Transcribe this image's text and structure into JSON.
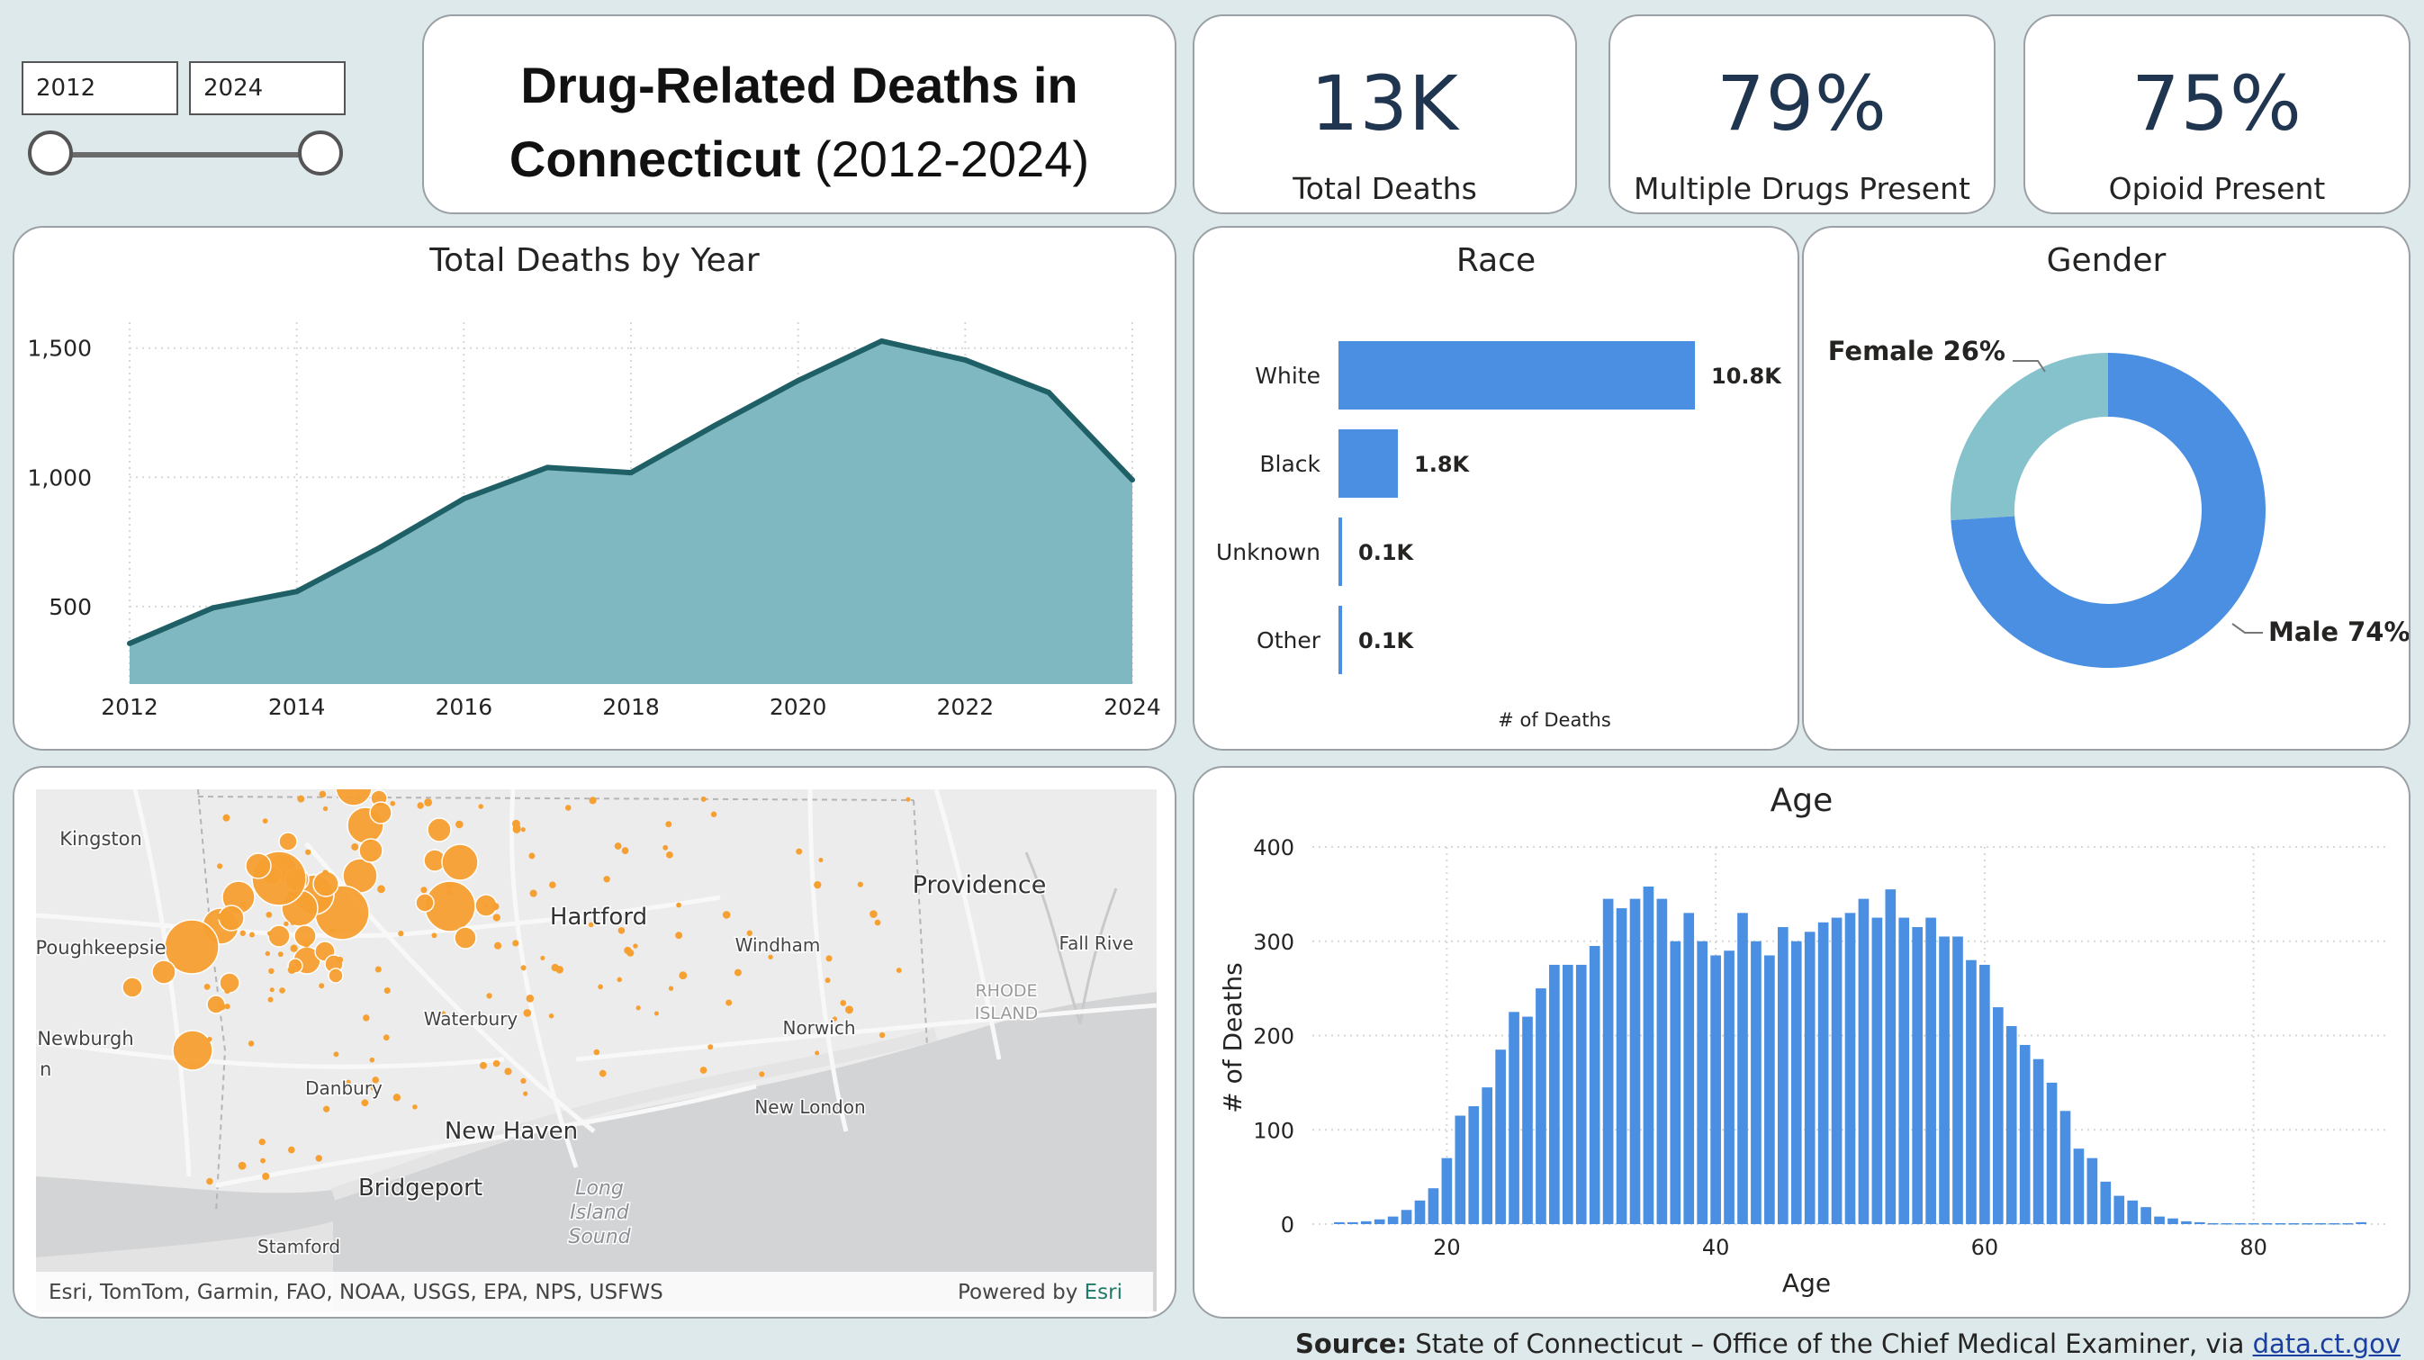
{
  "slicer": {
    "start": "2012",
    "end": "2024",
    "range": [
      2012,
      2024
    ],
    "selected": [
      2012,
      2024
    ]
  },
  "title": {
    "line1": "Drug-Related Deaths in",
    "line2_bold": "Connecticut",
    "line2_light": "(2012-2024)"
  },
  "kpis": [
    {
      "value": "13K",
      "label": "Total Deaths"
    },
    {
      "value": "79%",
      "label": "Multiple Drugs Present"
    },
    {
      "value": "75%",
      "label": "Opioid Present"
    }
  ],
  "colors": {
    "background": "#dde9ea",
    "area_fill": "#7fb8c1",
    "area_line": "#1f5f66",
    "bar": "#4a8fe2",
    "donut_female": "#86c2cb",
    "donut_male": "#4a8fe2",
    "map_dot": "#f7a032",
    "kpi_text": "#1f3550"
  },
  "map": {
    "labels": {
      "kingston": "Kingston",
      "poughkeepsie": "Poughkeepsie",
      "newburgh": "Newburgh",
      "providence": "Providence",
      "fall_river": "Fall Rive",
      "rhode1": "RHODE",
      "rhode2": "ISLAND",
      "hartford": "Hartford",
      "waterbury": "Waterbury",
      "windham": "Windham",
      "norwich": "Norwich",
      "danbury": "Danbury",
      "new_haven": "New Haven",
      "new_london": "New London",
      "bridgeport": "Bridgeport",
      "stamford": "Stamford",
      "sound1": "Long",
      "sound2": "Island",
      "sound3": "Sound",
      "edge": "n"
    },
    "attribution": "Esri, TomTom, Garmin, FAO, NOAA, USGS, EPA, NPS, USFWS",
    "powered_prefix": "Powered by ",
    "powered_brand": "Esri"
  },
  "source": {
    "label": "Source:",
    "text": " State of Connecticut – Office of the Chief Medical Examiner, via ",
    "link": "data.ct.gov"
  },
  "chart_data": [
    {
      "type": "area",
      "title": "Total Deaths by Year",
      "x": [
        2012,
        2013,
        2014,
        2015,
        2016,
        2017,
        2018,
        2019,
        2020,
        2021,
        2022,
        2023,
        2024
      ],
      "values": [
        357,
        495,
        558,
        729,
        917,
        1038,
        1018,
        1200,
        1374,
        1527,
        1454,
        1328,
        990
      ],
      "xticks": [
        "2012",
        "2014",
        "2016",
        "2018",
        "2020",
        "2022",
        "2024"
      ],
      "yticks": [
        "500",
        "1,000",
        "1,500"
      ],
      "ylim": [
        200,
        1600
      ],
      "grid": true
    },
    {
      "type": "bar",
      "orientation": "horizontal",
      "title": "Race",
      "categories": [
        "White",
        "Black",
        "Unknown",
        "Other"
      ],
      "values": [
        10.8,
        1.8,
        0.1,
        0.1
      ],
      "value_labels": [
        "10.8K",
        "1.8K",
        "0.1K",
        "0.1K"
      ],
      "xlabel": "# of Deaths",
      "units": "K"
    },
    {
      "type": "pie",
      "title": "Gender",
      "categories": [
        "Female",
        "Male"
      ],
      "values": [
        26,
        74
      ],
      "labels": [
        "Female 26%",
        "Male 74%"
      ],
      "donut": true
    },
    {
      "type": "bar",
      "title": "Age",
      "xlabel": "Age",
      "ylabel": "# of Deaths",
      "xticks": [
        "20",
        "40",
        "60",
        "80"
      ],
      "yticks": [
        "0",
        "100",
        "200",
        "300",
        "400"
      ],
      "ylim": [
        0,
        400
      ],
      "x": [
        12,
        13,
        14,
        15,
        16,
        17,
        18,
        19,
        20,
        21,
        22,
        23,
        24,
        25,
        26,
        27,
        28,
        29,
        30,
        31,
        32,
        33,
        34,
        35,
        36,
        37,
        38,
        39,
        40,
        41,
        42,
        43,
        44,
        45,
        46,
        47,
        48,
        49,
        50,
        51,
        52,
        53,
        54,
        55,
        56,
        57,
        58,
        59,
        60,
        61,
        62,
        63,
        64,
        65,
        66,
        67,
        68,
        69,
        70,
        71,
        72,
        73,
        74,
        75,
        76,
        77,
        78,
        79,
        80,
        81,
        82,
        83,
        84,
        85,
        86,
        87,
        88
      ],
      "values": [
        2,
        2,
        3,
        5,
        8,
        15,
        25,
        38,
        70,
        115,
        125,
        145,
        185,
        225,
        220,
        250,
        275,
        275,
        275,
        295,
        345,
        335,
        345,
        358,
        345,
        300,
        330,
        300,
        285,
        290,
        330,
        300,
        285,
        315,
        300,
        310,
        320,
        325,
        330,
        345,
        325,
        355,
        325,
        315,
        325,
        305,
        305,
        280,
        275,
        230,
        210,
        190,
        175,
        150,
        120,
        80,
        70,
        45,
        30,
        25,
        18,
        8,
        6,
        3,
        2,
        1,
        1,
        1,
        1,
        1,
        1,
        1,
        1,
        1,
        1,
        1,
        2
      ]
    }
  ]
}
